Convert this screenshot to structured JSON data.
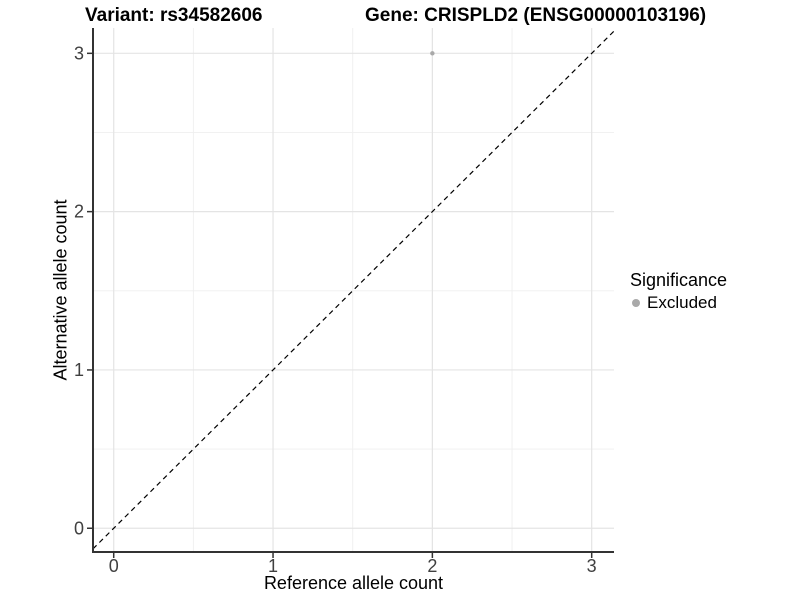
{
  "chart_data": {
    "type": "scatter",
    "title_parts": {
      "variant": "Variant: rs34582606",
      "gene": "Gene: CRISPLD2 (ENSG00000103196)"
    },
    "xlabel": "Reference allele count",
    "ylabel": "Alternative allele count",
    "xlim": [
      -0.13,
      3.14
    ],
    "ylim": [
      -0.15,
      3.16
    ],
    "x_ticks": [
      0,
      1,
      2,
      3
    ],
    "y_ticks": [
      0,
      1,
      2,
      3
    ],
    "x_minor_ticks": [
      0.5,
      1.5,
      2.5
    ],
    "y_minor_ticks": [
      0.5,
      1.5,
      2.5
    ],
    "grid": true,
    "reference_line": {
      "style": "dashed",
      "slope": 1,
      "intercept": 0,
      "color": "#000000"
    },
    "series": [
      {
        "name": "Excluded",
        "color": "#a9a9a9",
        "points": [
          {
            "x": 2,
            "y": 3
          }
        ]
      }
    ],
    "legend": {
      "title": "Significance",
      "position": "right",
      "entries": [
        {
          "label": "Excluded",
          "color": "#a9a9a9",
          "marker": "circle"
        }
      ]
    },
    "colors": {
      "background": "#ffffff",
      "major_grid": "#e4e4e4",
      "minor_grid": "#efefef",
      "axis_line": "#333333",
      "tick_mark": "#333333",
      "tick_label": "#404040",
      "text": "#000000"
    }
  }
}
